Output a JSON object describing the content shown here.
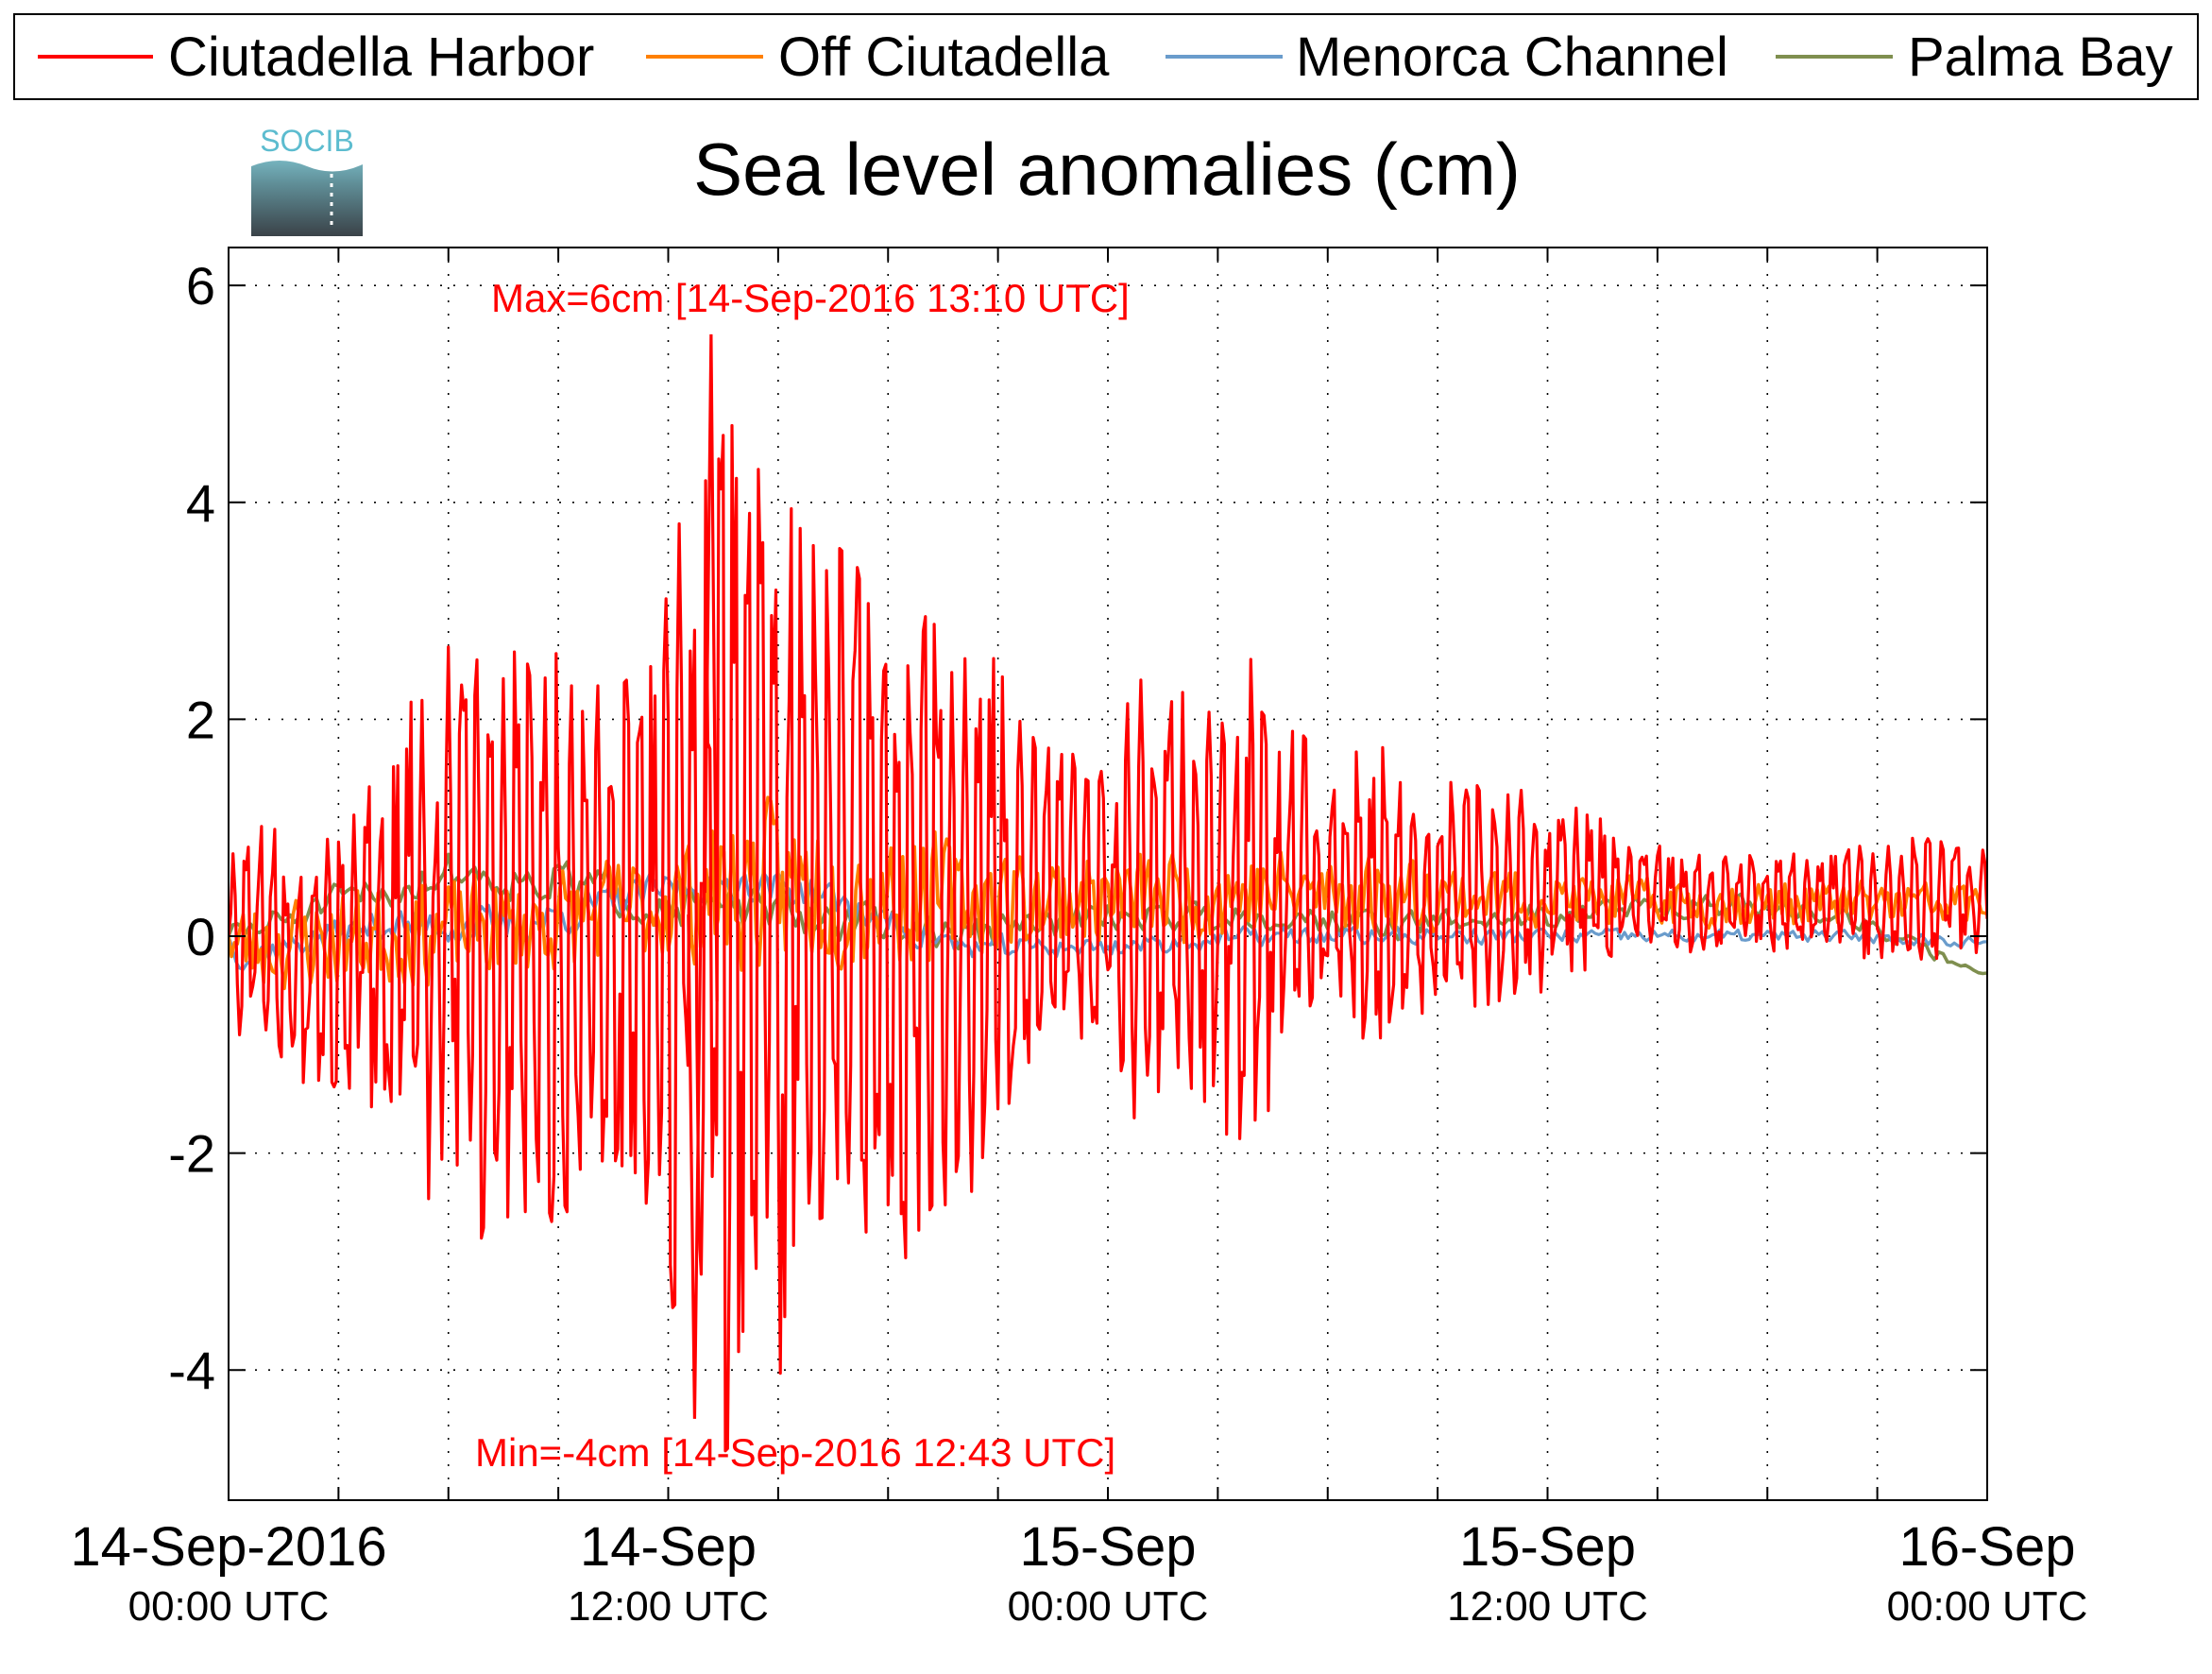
{
  "logo": {
    "text": "SOCIB"
  },
  "chart_data": {
    "type": "line",
    "title": "Sea level anomalies (cm)",
    "xlabel": "",
    "ylabel": "",
    "x_range": [
      "2016-09-14 00:00 UTC",
      "2016-09-16 00:00 UTC"
    ],
    "ylim": [
      -5.2,
      6.35
    ],
    "y_ticks": [
      -4,
      -2,
      0,
      2,
      4,
      6
    ],
    "y_tick_labels": [
      "-4",
      "-2",
      "0",
      "2",
      "4",
      "6"
    ],
    "x_ticks": [
      {
        "date": "14-Sep-2016",
        "time": "00:00 UTC",
        "hours": 0
      },
      {
        "date": "14-Sep",
        "time": "12:00 UTC",
        "hours": 12
      },
      {
        "date": "15-Sep",
        "time": "00:00 UTC",
        "hours": 24
      },
      {
        "date": "15-Sep",
        "time": "12:00 UTC",
        "hours": 36
      },
      {
        "date": "16-Sep",
        "time": "00:00 UTC",
        "hours": 48
      }
    ],
    "grid": true,
    "legend_position": "top",
    "series": [
      {
        "name": "Ciutadella Harbor",
        "color": "#ff0000",
        "x_hours": [
          0,
          1,
          2,
          3,
          4,
          5,
          6,
          7,
          8,
          9,
          10,
          11,
          12,
          12.72,
          13,
          13.17,
          14,
          15,
          16,
          17,
          18,
          19,
          20,
          21,
          22,
          23,
          24,
          25,
          26,
          27,
          28,
          29,
          30,
          31,
          32,
          33,
          34,
          35,
          36,
          37,
          38,
          39,
          40,
          41,
          42,
          43,
          44,
          45,
          46,
          47,
          48
        ],
        "envelope_cm": [
          0.9,
          1.3,
          1.4,
          1.3,
          1.6,
          2.2,
          2.7,
          2.8,
          2.6,
          2.8,
          2.6,
          2.4,
          3.4,
          4.3,
          5.4,
          5.6,
          4.6,
          4.3,
          3.6,
          3.3,
          3.2,
          3.4,
          2.8,
          2.2,
          1.6,
          1.5,
          1.6,
          2.2,
          2.0,
          2.1,
          2.4,
          1.5,
          1.4,
          1.4,
          1.3,
          1.2,
          1.1,
          1.0,
          0.9,
          0.85,
          0.6,
          0.5,
          0.45,
          0.45,
          0.5,
          0.45,
          0.5,
          0.55,
          0.6,
          0.55,
          0.5
        ],
        "offset_cm": [
          0,
          -0.1,
          -0.2,
          -0.1,
          -0.1,
          0,
          0,
          0,
          0,
          0,
          0,
          0,
          0,
          0.2,
          0.3,
          0.2,
          0.2,
          0.2,
          0.2,
          0.2,
          0.3,
          0.3,
          0.2,
          0.3,
          0.3,
          0.3,
          0.3,
          0.3,
          0.3,
          0.3,
          0.3,
          0.4,
          0.4,
          0.4,
          0.4,
          0.4,
          0.4,
          0.4,
          0.4,
          0.4,
          0.35,
          0.35,
          0.3,
          0.3,
          0.3,
          0.3,
          0.3,
          0.35,
          0.35,
          0.35,
          0.35
        ],
        "max": {
          "value": 6,
          "time": "14-Sep-2016 13:10 UTC"
        },
        "min": {
          "value": -4,
          "time": "14-Sep-2016 12:43 UTC"
        }
      },
      {
        "name": "Off Ciutadella",
        "color": "#ff8000",
        "x_hours": [
          0,
          4,
          8,
          12,
          14,
          16,
          18,
          20,
          24,
          28,
          32,
          36,
          40,
          44,
          48
        ],
        "envelope_cm": [
          0.5,
          0.55,
          0.55,
          0.6,
          0.9,
          0.9,
          0.8,
          0.6,
          0.5,
          0.5,
          0.4,
          0.3,
          0.25,
          0.25,
          0.25
        ],
        "offset_cm": [
          -0.1,
          0,
          0.1,
          0.3,
          0.45,
          0.45,
          0.4,
          0.35,
          0.35,
          0.4,
          0.4,
          0.35,
          0.3,
          0.3,
          0.3
        ]
      },
      {
        "name": "Menorca Channel",
        "color": "#6a9ccc",
        "x_hours": [
          0,
          4,
          8,
          12,
          14,
          16,
          18,
          20,
          24,
          28,
          32,
          36,
          40,
          44,
          48
        ],
        "envelope_cm": [
          0.15,
          0.2,
          0.25,
          0.2,
          0.2,
          0.2,
          0.2,
          0.15,
          0.12,
          0.12,
          0.1,
          0.1,
          0.08,
          0.07,
          0.07
        ],
        "offset_cm": [
          -0.2,
          0.1,
          0.1,
          0.45,
          0.5,
          0.4,
          0.1,
          -0.1,
          -0.1,
          0,
          0,
          0,
          0,
          0,
          -0.05
        ]
      },
      {
        "name": "Palma Bay",
        "color": "#7f8f4f",
        "x_hours": [
          0,
          3,
          6,
          9,
          12,
          15,
          18,
          20,
          24,
          28,
          32,
          36,
          40,
          44,
          46,
          48
        ],
        "envelope_cm": [
          0.2,
          0.25,
          0.3,
          0.3,
          0.3,
          0.3,
          0.25,
          0.25,
          0.2,
          0.2,
          0.2,
          0.2,
          0.15,
          0.12,
          0.1,
          0.1
        ],
        "offset_cm": [
          0,
          0.3,
          0.6,
          0.5,
          0.3,
          0.2,
          0.1,
          0,
          0.2,
          0.2,
          0.1,
          0.2,
          0.3,
          0.2,
          -0.1,
          -0.35
        ]
      }
    ]
  }
}
